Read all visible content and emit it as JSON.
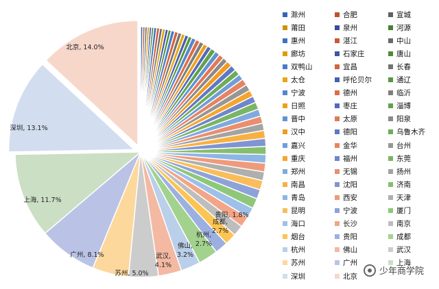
{
  "chart_data": {
    "type": "pie",
    "unit": "%",
    "slices": [
      {
        "name": "北京",
        "value": 14.0,
        "color": "#F8D7CB",
        "label": "北京, 14.0%",
        "exploded": true
      },
      {
        "name": "深圳",
        "value": 13.1,
        "color": "#D3DDF0",
        "label": "深圳, 13.1%",
        "exploded": true
      },
      {
        "name": "上海",
        "value": 11.7,
        "color": "#CADFC4",
        "label": "上海, 11.7%"
      },
      {
        "name": "广州",
        "value": 8.1,
        "color": "#BAC3E6",
        "label": "广州, 8.1%"
      },
      {
        "name": "苏州",
        "value": 5.0,
        "color": "#FDD89C",
        "label": "苏州, 5.0%"
      },
      {
        "name": "武汉",
        "value": 4.1,
        "color": "#CCCCCC",
        "label": "武汉, 4.1%"
      },
      {
        "name": "佛山",
        "value": 3.2,
        "color": "#F3B9A2",
        "label": "佛山, 3.2%"
      },
      {
        "name": "杭州",
        "value": 2.7,
        "color": "#B9CFEA",
        "label": "杭州, 2.7%"
      },
      {
        "name": "成都",
        "value": 2.7,
        "color": "#A2D28E",
        "label": "成都, 2.7%"
      },
      {
        "name": "贵阳",
        "value": 1.8,
        "color": "#9CB0E0",
        "label": "贵阳, 1.8%"
      },
      {
        "name": "烟台",
        "value": 1.6,
        "color": "#FCC451",
        "label": ""
      },
      {
        "name": "南京",
        "value": 1.5,
        "color": "#BDBDBD",
        "label": ""
      },
      {
        "name": "长沙",
        "value": 1.5,
        "color": "#F3A587",
        "label": ""
      },
      {
        "name": "海口",
        "value": 1.4,
        "color": "#9DC0E8",
        "label": ""
      },
      {
        "name": "厦门",
        "value": 1.4,
        "color": "#8FC77A",
        "label": ""
      },
      {
        "name": "宁波",
        "value": 1.3,
        "color": "#8EA2DA",
        "label": ""
      },
      {
        "name": "昆明",
        "value": 1.3,
        "color": "#F9BD5A",
        "label": ""
      },
      {
        "name": "天津",
        "value": 1.2,
        "color": "#AFAFAF",
        "label": ""
      },
      {
        "name": "西安",
        "value": 1.2,
        "color": "#EE9B7B",
        "label": ""
      },
      {
        "name": "青岛",
        "value": 1.2,
        "color": "#8DB5E5",
        "label": ""
      },
      {
        "name": "济南",
        "value": 1.1,
        "color": "#86BE6E",
        "label": ""
      },
      {
        "name": "沈阳",
        "value": 1.1,
        "color": "#7F94D2",
        "label": ""
      },
      {
        "name": "南昌",
        "value": 1.1,
        "color": "#F7B143",
        "label": ""
      },
      {
        "name": "扬州",
        "value": 1.0,
        "color": "#A3A3A3",
        "label": ""
      },
      {
        "name": "无锡",
        "value": 1.0,
        "color": "#E98F6E",
        "label": ""
      },
      {
        "name": "郑州",
        "value": 1.0,
        "color": "#7FAADF",
        "label": ""
      },
      {
        "name": "东莞",
        "value": 1.0,
        "color": "#7BB563",
        "label": ""
      },
      {
        "name": "福州",
        "value": 0.9,
        "color": "#6E86CB",
        "label": ""
      },
      {
        "name": "重庆",
        "value": 0.9,
        "color": "#F5A52F",
        "label": ""
      },
      {
        "name": "台州",
        "value": 0.9,
        "color": "#969696",
        "label": ""
      },
      {
        "name": "金华",
        "value": 0.9,
        "color": "#E58462",
        "label": ""
      },
      {
        "name": "嘉兴",
        "value": 0.8,
        "color": "#6F9ED8",
        "label": ""
      },
      {
        "name": "乌鲁木齐",
        "value": 0.8,
        "color": "#6FAC57",
        "label": ""
      },
      {
        "name": "德阳",
        "value": 0.8,
        "color": "#5F78C3",
        "label": ""
      },
      {
        "name": "汉中",
        "value": 0.8,
        "color": "#F39B1F",
        "label": ""
      },
      {
        "name": "阳泉",
        "value": 0.7,
        "color": "#8A8A8A",
        "label": ""
      },
      {
        "name": "太原",
        "value": 0.7,
        "color": "#E07955",
        "label": ""
      },
      {
        "name": "晋中",
        "value": 0.7,
        "color": "#6292D2",
        "label": ""
      },
      {
        "name": "淄博",
        "value": 0.7,
        "color": "#62A14B",
        "label": ""
      },
      {
        "name": "枣庄",
        "value": 0.6,
        "color": "#5069BA",
        "label": ""
      },
      {
        "name": "日照",
        "value": 0.6,
        "color": "#EFA01A",
        "label": ""
      },
      {
        "name": "临沂",
        "value": 0.6,
        "color": "#7E7E7E",
        "label": ""
      },
      {
        "name": "德州",
        "value": 0.6,
        "color": "#DB6E48",
        "label": ""
      },
      {
        "name": "宁波",
        "value": 0.6,
        "color": "#5587CC",
        "label": ""
      },
      {
        "name": "通辽",
        "value": 0.5,
        "color": "#579642",
        "label": ""
      },
      {
        "name": "呼伦贝尔",
        "value": 0.5,
        "color": "#465FB1",
        "label": ""
      },
      {
        "name": "太仓",
        "value": 0.5,
        "color": "#E8A712",
        "label": ""
      },
      {
        "name": "长春",
        "value": 0.5,
        "color": "#737373",
        "label": ""
      },
      {
        "name": "宜昌",
        "value": 0.5,
        "color": "#D4633E",
        "label": ""
      },
      {
        "name": "双鸭山",
        "value": 0.5,
        "color": "#4A7CC5",
        "label": ""
      },
      {
        "name": "唐山",
        "value": 0.4,
        "color": "#4E8B3A",
        "label": ""
      },
      {
        "name": "石家庄",
        "value": 0.4,
        "color": "#3E56A7",
        "label": ""
      },
      {
        "name": "廊坊",
        "value": 0.4,
        "color": "#D9A00A",
        "label": ""
      },
      {
        "name": "中山",
        "value": 0.4,
        "color": "#6A6A6A",
        "label": ""
      },
      {
        "name": "湛江",
        "value": 0.4,
        "color": "#C95A36",
        "label": ""
      },
      {
        "name": "惠州",
        "value": 0.4,
        "color": "#3F72BD",
        "label": ""
      },
      {
        "name": "河源",
        "value": 0.3,
        "color": "#477F33",
        "label": ""
      },
      {
        "name": "泉州",
        "value": 0.3,
        "color": "#364D9D",
        "label": ""
      },
      {
        "name": "莆田",
        "value": 0.3,
        "color": "#C99405",
        "label": ""
      },
      {
        "name": "宣城",
        "value": 0.3,
        "color": "#616161",
        "label": ""
      },
      {
        "name": "合肥",
        "value": 0.3,
        "color": "#BD522F",
        "label": ""
      },
      {
        "name": "滁州",
        "value": 0.3,
        "color": "#3567B3",
        "label": ""
      }
    ]
  },
  "legend": {
    "items": [
      {
        "name": "滁州",
        "color": "#3567B3"
      },
      {
        "name": "合肥",
        "color": "#BD522F"
      },
      {
        "name": "宣城",
        "color": "#616161"
      },
      {
        "name": "莆田",
        "color": "#C99405"
      },
      {
        "name": "泉州",
        "color": "#364D9D"
      },
      {
        "name": "河源",
        "color": "#477F33"
      },
      {
        "name": "惠州",
        "color": "#3F72BD"
      },
      {
        "name": "湛江",
        "color": "#C95A36"
      },
      {
        "name": "中山",
        "color": "#6A6A6A"
      },
      {
        "name": "廊坊",
        "color": "#D9A00A"
      },
      {
        "name": "石家庄",
        "color": "#3E56A7"
      },
      {
        "name": "唐山",
        "color": "#4E8B3A"
      },
      {
        "name": "双鸭山",
        "color": "#4A7CC5"
      },
      {
        "name": "宜昌",
        "color": "#D4633E"
      },
      {
        "name": "长春",
        "color": "#737373"
      },
      {
        "name": "太仓",
        "color": "#E8A712"
      },
      {
        "name": "呼伦贝尔",
        "color": "#465FB1"
      },
      {
        "name": "通辽",
        "color": "#579642"
      },
      {
        "name": "宁波",
        "color": "#5587CC"
      },
      {
        "name": "德州",
        "color": "#DB6E48"
      },
      {
        "name": "临沂",
        "color": "#7E7E7E"
      },
      {
        "name": "日照",
        "color": "#EFA01A"
      },
      {
        "name": "枣庄",
        "color": "#5069BA"
      },
      {
        "name": "淄博",
        "color": "#62A14B"
      },
      {
        "name": "晋中",
        "color": "#6292D2"
      },
      {
        "name": "太原",
        "color": "#E07955"
      },
      {
        "name": "阳泉",
        "color": "#8A8A8A"
      },
      {
        "name": "汉中",
        "color": "#F39B1F"
      },
      {
        "name": "德阳",
        "color": "#5F78C3"
      },
      {
        "name": "乌鲁木齐",
        "color": "#6FAC57"
      },
      {
        "name": "嘉兴",
        "color": "#6F9ED8"
      },
      {
        "name": "金华",
        "color": "#E58462"
      },
      {
        "name": "台州",
        "color": "#969696"
      },
      {
        "name": "重庆",
        "color": "#F5A52F"
      },
      {
        "name": "福州",
        "color": "#6E86CB"
      },
      {
        "name": "东莞",
        "color": "#7BB563"
      },
      {
        "name": "郑州",
        "color": "#7FAADF"
      },
      {
        "name": "无锡",
        "color": "#E98F6E"
      },
      {
        "name": "扬州",
        "color": "#A3A3A3"
      },
      {
        "name": "南昌",
        "color": "#F7B143"
      },
      {
        "name": "沈阳",
        "color": "#7F94D2"
      },
      {
        "name": "济南",
        "color": "#86BE6E"
      },
      {
        "name": "青岛",
        "color": "#8DB5E5"
      },
      {
        "name": "西安",
        "color": "#EE9B7B"
      },
      {
        "name": "天津",
        "color": "#AFAFAF"
      },
      {
        "name": "昆明",
        "color": "#F9BD5A"
      },
      {
        "name": "宁波",
        "color": "#8EA2DA"
      },
      {
        "name": "厦门",
        "color": "#8FC77A"
      },
      {
        "name": "海口",
        "color": "#9DC0E8"
      },
      {
        "name": "长沙",
        "color": "#F3A587"
      },
      {
        "name": "南京",
        "color": "#BDBDBD"
      },
      {
        "name": "烟台",
        "color": "#FCC451"
      },
      {
        "name": "贵阳",
        "color": "#9CB0E0"
      },
      {
        "name": "成都",
        "color": "#A2D28E"
      },
      {
        "name": "杭州",
        "color": "#B9CFEA"
      },
      {
        "name": "佛山",
        "color": "#F3B9A2"
      },
      {
        "name": "武汉",
        "color": "#CCCCCC"
      },
      {
        "name": "苏州",
        "color": "#FDD89C"
      },
      {
        "name": "广州",
        "color": "#BAC3E6"
      },
      {
        "name": "上海",
        "color": "#CADFC4"
      },
      {
        "name": "深圳",
        "color": "#D3DDF0"
      },
      {
        "name": "北京",
        "color": "#F8D7CB"
      }
    ]
  },
  "watermark": {
    "text": "少年商学院",
    "icon": "brand-logo-icon"
  }
}
